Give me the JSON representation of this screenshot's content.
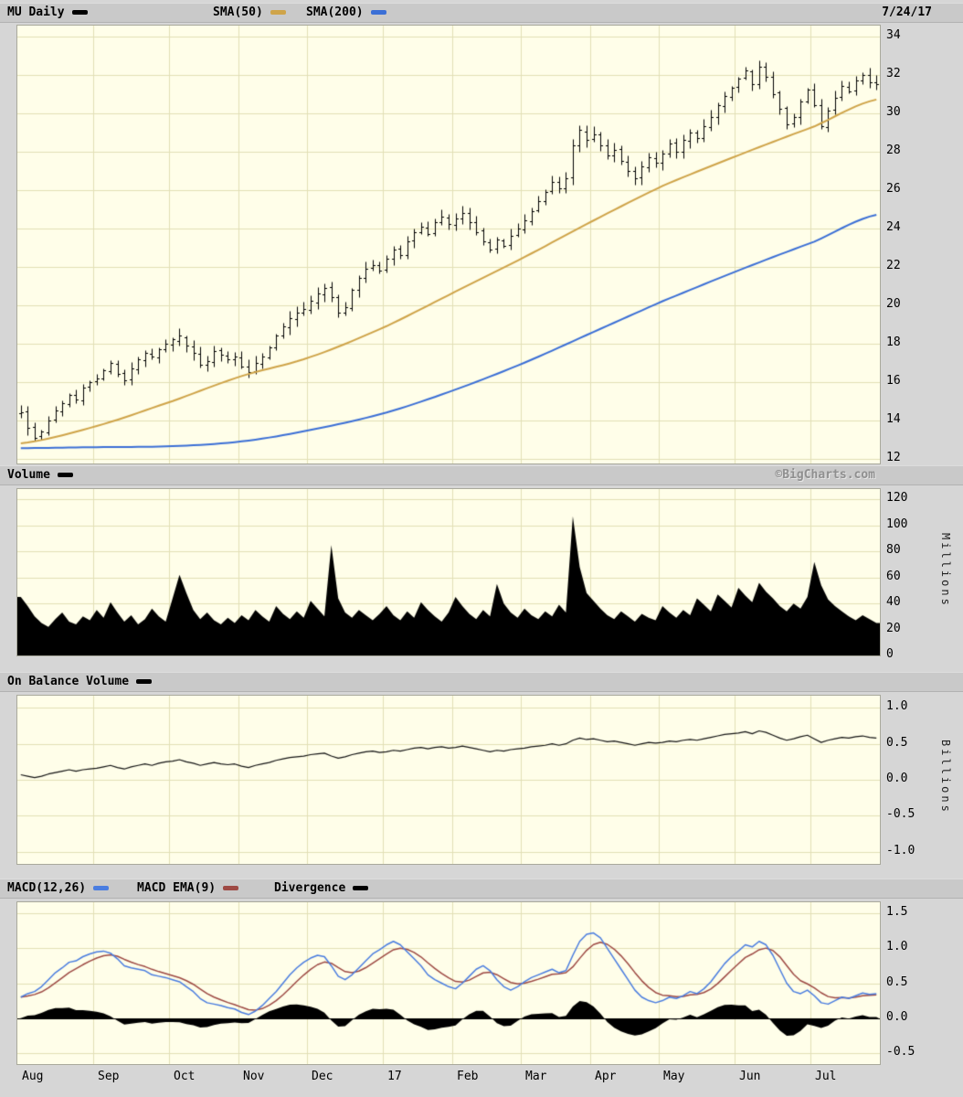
{
  "header": {
    "symbol": "MU Daily",
    "sma50": "SMA(50)",
    "sma200": "SMA(200)",
    "date": "7/24/17"
  },
  "volume_header": {
    "title": "Volume",
    "watermark": "©BigCharts.com",
    "unit": "Millions"
  },
  "obv_header": {
    "title": "On Balance Volume",
    "unit": "Billions"
  },
  "macd_header": {
    "macd": "MACD(12,26)",
    "ema": "MACD EMA(9)",
    "divergence": "Divergence"
  },
  "colors": {
    "bg_page": "#d6d6d6",
    "bg_plot": "#fffee9",
    "grid": "#e2e0b6",
    "header_bg": "#c9c9c9",
    "bar": "#000000",
    "sma50": "#cfa449",
    "sma200": "#3b6fd6",
    "macd_line": "#4a7de0",
    "macd_signal": "#9e4a44",
    "divergence": "#000000",
    "watermark": "#8f8f8f"
  },
  "axes": {
    "price_tick_values": [
      34,
      32,
      30,
      28,
      26,
      24,
      22,
      20,
      18,
      16,
      14,
      12
    ],
    "price_tick_labels": [
      "34",
      "32",
      "30",
      "28",
      "26",
      "24",
      "22",
      "20",
      "18",
      "16",
      "14",
      "12"
    ],
    "volume_tick_values": [
      120,
      100,
      80,
      60,
      40,
      20,
      0
    ],
    "volume_tick_labels": [
      "120",
      "100",
      "80",
      "60",
      "40",
      "20",
      "0"
    ],
    "obv_tick_values": [
      1,
      0.5,
      0,
      -0.5,
      -1
    ],
    "obv_tick_labels": [
      "1.0",
      "0.5",
      "0.0",
      "-0.5",
      "-1.0"
    ],
    "macd_tick_values": [
      1.5,
      1,
      0.5,
      0,
      -0.5
    ],
    "macd_tick_labels": [
      "1.5",
      "1.0",
      "0.5",
      "0.0",
      "-0.5"
    ],
    "month_labels": [
      "Aug",
      "Sep",
      "Oct",
      "Nov",
      "Dec",
      "17",
      "Feb",
      "Mar",
      "Apr",
      "May",
      "Jun",
      "Jul"
    ],
    "month_boundaries": [
      0,
      11,
      22,
      32,
      42,
      53,
      63,
      73,
      83,
      93,
      104,
      115
    ]
  },
  "chart_data": [
    {
      "type": "bar",
      "subtype": "ohlc_daily",
      "title": "MU Daily",
      "as_of_date": "7/24/17",
      "ylim": [
        12,
        34
      ],
      "y_gridstep": 2,
      "x_months": [
        "Aug",
        "Sep",
        "Oct",
        "Nov",
        "Dec",
        "17",
        "Feb",
        "Mar",
        "Apr",
        "May",
        "Jun",
        "Jul"
      ],
      "month_start_index": [
        0,
        11,
        22,
        32,
        42,
        53,
        63,
        73,
        83,
        93,
        104,
        115
      ],
      "close": [
        14.4,
        13.6,
        13.1,
        13.4,
        14.0,
        14.5,
        14.9,
        15.3,
        15.1,
        15.7,
        16.0,
        16.2,
        16.6,
        17.0,
        16.4,
        16.1,
        16.7,
        17.2,
        17.5,
        17.3,
        17.7,
        18.0,
        18.2,
        18.4,
        17.9,
        17.5,
        16.9,
        17.1,
        17.6,
        17.4,
        17.2,
        17.3,
        16.8,
        16.5,
        17.0,
        17.3,
        17.8,
        18.4,
        18.9,
        19.3,
        19.6,
        19.8,
        20.2,
        20.6,
        20.9,
        20.4,
        19.6,
        19.9,
        20.8,
        21.4,
        21.9,
        22.1,
        21.8,
        22.4,
        22.9,
        22.6,
        23.3,
        23.8,
        24.1,
        23.7,
        24.3,
        24.6,
        24.2,
        24.5,
        24.8,
        24.3,
        23.8,
        23.3,
        22.9,
        23.4,
        23.1,
        23.6,
        24.0,
        24.4,
        24.9,
        25.4,
        25.9,
        26.4,
        26.1,
        26.6,
        28.3,
        29.1,
        28.6,
        28.9,
        28.3,
        27.8,
        28.1,
        27.5,
        27.0,
        26.6,
        27.2,
        27.7,
        27.4,
        27.9,
        28.4,
        28.0,
        28.6,
        29.0,
        28.7,
        29.3,
        29.8,
        30.4,
        30.9,
        31.3,
        31.8,
        32.2,
        31.5,
        32.4,
        31.9,
        31.0,
        30.2,
        29.4,
        29.8,
        30.6,
        31.2,
        30.4,
        29.3,
        30.1,
        30.8,
        31.4,
        31.1,
        31.7,
        32.0,
        31.6,
        31.5
      ],
      "overlays": [
        {
          "name": "SMA(50)",
          "color": "#cfa449",
          "anchor_indices": [
            0,
            11,
            22,
            32,
            42,
            53,
            63,
            73,
            83,
            93,
            104,
            115,
            124
          ],
          "values": [
            12.8,
            13.7,
            15.0,
            16.3,
            17.3,
            18.9,
            20.7,
            22.5,
            24.4,
            26.2,
            27.8,
            29.3,
            30.7
          ]
        },
        {
          "name": "SMA(200)",
          "color": "#3b6fd6",
          "anchor_indices": [
            0,
            11,
            22,
            32,
            42,
            53,
            63,
            73,
            83,
            93,
            104,
            115,
            124
          ],
          "values": [
            12.55,
            12.6,
            12.65,
            12.9,
            13.5,
            14.4,
            15.6,
            17.0,
            18.6,
            20.2,
            21.8,
            23.3,
            24.7
          ]
        }
      ]
    },
    {
      "type": "area",
      "title": "Volume",
      "ylabel": "Millions",
      "ylim": [
        0,
        120
      ],
      "values": [
        45,
        38,
        30,
        25,
        22,
        28,
        33,
        26,
        24,
        30,
        27,
        35,
        29,
        41,
        33,
        26,
        31,
        24,
        28,
        36,
        30,
        26,
        44,
        62,
        48,
        35,
        28,
        33,
        27,
        24,
        29,
        25,
        31,
        27,
        35,
        30,
        26,
        38,
        32,
        28,
        34,
        29,
        42,
        36,
        30,
        85,
        44,
        33,
        29,
        35,
        31,
        27,
        32,
        38,
        31,
        27,
        34,
        29,
        41,
        35,
        30,
        26,
        33,
        45,
        38,
        32,
        28,
        35,
        30,
        55,
        40,
        33,
        29,
        36,
        31,
        28,
        34,
        30,
        39,
        33,
        107,
        68,
        48,
        42,
        36,
        31,
        28,
        34,
        30,
        26,
        32,
        29,
        27,
        38,
        33,
        29,
        35,
        31,
        44,
        39,
        34,
        47,
        42,
        37,
        52,
        46,
        41,
        56,
        49,
        44,
        38,
        34,
        40,
        36,
        45,
        72,
        54,
        43,
        38,
        34,
        30,
        27,
        31,
        28,
        25
      ]
    },
    {
      "type": "line",
      "title": "On Balance Volume",
      "ylabel": "Billions",
      "ylim": [
        -1,
        1
      ],
      "values": [
        0.07,
        0.05,
        0.03,
        0.05,
        0.08,
        0.1,
        0.12,
        0.14,
        0.12,
        0.14,
        0.15,
        0.16,
        0.18,
        0.2,
        0.17,
        0.15,
        0.18,
        0.2,
        0.22,
        0.2,
        0.23,
        0.25,
        0.26,
        0.28,
        0.25,
        0.23,
        0.2,
        0.22,
        0.24,
        0.22,
        0.21,
        0.22,
        0.19,
        0.17,
        0.2,
        0.22,
        0.24,
        0.27,
        0.29,
        0.31,
        0.32,
        0.33,
        0.35,
        0.36,
        0.37,
        0.33,
        0.3,
        0.32,
        0.35,
        0.37,
        0.39,
        0.4,
        0.38,
        0.39,
        0.41,
        0.4,
        0.42,
        0.44,
        0.45,
        0.43,
        0.45,
        0.46,
        0.44,
        0.45,
        0.47,
        0.45,
        0.43,
        0.41,
        0.39,
        0.41,
        0.4,
        0.42,
        0.43,
        0.44,
        0.46,
        0.47,
        0.48,
        0.5,
        0.48,
        0.5,
        0.55,
        0.58,
        0.56,
        0.57,
        0.55,
        0.53,
        0.54,
        0.52,
        0.5,
        0.48,
        0.5,
        0.52,
        0.51,
        0.52,
        0.54,
        0.53,
        0.55,
        0.56,
        0.55,
        0.57,
        0.59,
        0.61,
        0.63,
        0.64,
        0.65,
        0.67,
        0.64,
        0.68,
        0.66,
        0.62,
        0.58,
        0.55,
        0.57,
        0.6,
        0.62,
        0.57,
        0.52,
        0.55,
        0.57,
        0.59,
        0.58,
        0.6,
        0.61,
        0.59,
        0.58
      ]
    },
    {
      "type": "line_histogram",
      "title": "MACD",
      "ylim": [
        -0.5,
        1.5
      ],
      "series": [
        {
          "name": "MACD(12,26)",
          "color": "#4a7de0",
          "values": [
            0.3,
            0.35,
            0.38,
            0.45,
            0.55,
            0.65,
            0.72,
            0.8,
            0.82,
            0.88,
            0.92,
            0.95,
            0.96,
            0.93,
            0.85,
            0.75,
            0.72,
            0.7,
            0.68,
            0.62,
            0.6,
            0.58,
            0.55,
            0.52,
            0.45,
            0.38,
            0.28,
            0.22,
            0.2,
            0.18,
            0.15,
            0.13,
            0.08,
            0.05,
            0.1,
            0.18,
            0.28,
            0.38,
            0.5,
            0.62,
            0.72,
            0.8,
            0.86,
            0.9,
            0.88,
            0.75,
            0.6,
            0.55,
            0.62,
            0.72,
            0.82,
            0.92,
            0.98,
            1.05,
            1.1,
            1.05,
            0.95,
            0.85,
            0.75,
            0.62,
            0.55,
            0.5,
            0.45,
            0.42,
            0.5,
            0.6,
            0.7,
            0.75,
            0.68,
            0.55,
            0.45,
            0.4,
            0.45,
            0.52,
            0.58,
            0.62,
            0.66,
            0.7,
            0.65,
            0.68,
            0.9,
            1.1,
            1.2,
            1.22,
            1.15,
            1.0,
            0.85,
            0.7,
            0.55,
            0.4,
            0.3,
            0.25,
            0.22,
            0.25,
            0.3,
            0.28,
            0.32,
            0.38,
            0.35,
            0.42,
            0.52,
            0.65,
            0.78,
            0.88,
            0.96,
            1.05,
            1.02,
            1.1,
            1.05,
            0.9,
            0.7,
            0.5,
            0.38,
            0.35,
            0.4,
            0.32,
            0.22,
            0.2,
            0.25,
            0.3,
            0.28,
            0.32,
            0.36,
            0.34,
            0.35
          ]
        },
        {
          "name": "MACD EMA(9)",
          "color": "#9e4a44",
          "derivation": "EMA(9) signal line of MACD"
        }
      ],
      "histogram": {
        "name": "Divergence",
        "color": "#000000",
        "derivation": "MACD minus signal"
      }
    }
  ]
}
